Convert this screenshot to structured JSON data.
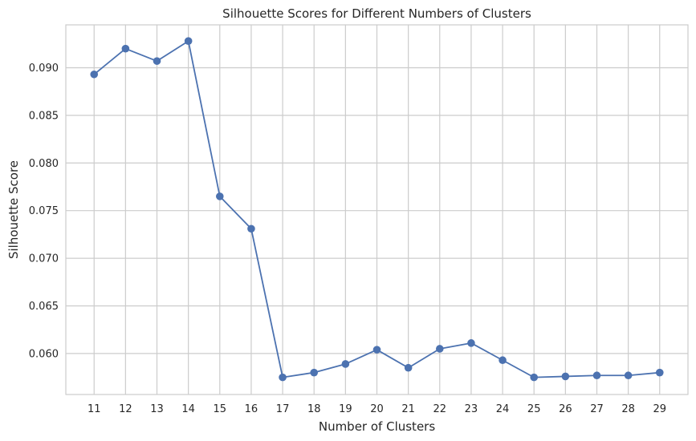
{
  "chart_data": {
    "type": "line",
    "title": "Silhouette Scores for Different Numbers of Clusters",
    "xlabel": "Number of Clusters",
    "ylabel": "Silhouette Score",
    "x": [
      11,
      12,
      13,
      14,
      15,
      16,
      17,
      18,
      19,
      20,
      21,
      22,
      23,
      24,
      25,
      26,
      27,
      28,
      29
    ],
    "series": [
      {
        "values": [
          0.0893,
          0.092,
          0.0907,
          0.0928,
          0.0765,
          0.0731,
          0.0575,
          0.058,
          0.0589,
          0.0604,
          0.0585,
          0.0605,
          0.0611,
          0.0593,
          0.0575,
          0.0576,
          0.0577,
          0.0577,
          0.058
        ]
      }
    ],
    "yticks": [
      "0.060",
      "0.065",
      "0.070",
      "0.075",
      "0.080",
      "0.085",
      "0.090"
    ],
    "xlim": [
      10.1,
      29.9
    ],
    "ylim": [
      0.0557,
      0.0945
    ],
    "grid": true,
    "marker": "circle",
    "colors": {
      "line": "#4c72b0",
      "grid": "#cccccc",
      "frame": "#cccccc"
    }
  }
}
